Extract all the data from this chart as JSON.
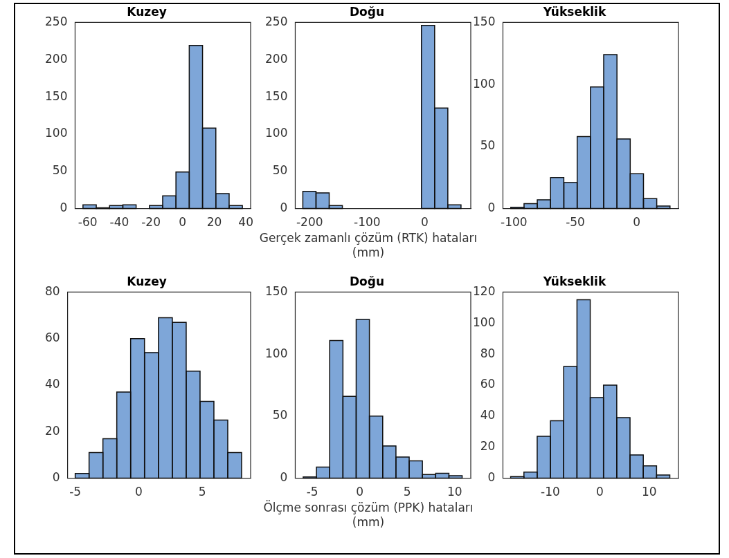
{
  "chart_data": [
    {
      "type": "histogram",
      "title": "Kuzey",
      "bins": [
        -63,
        -54.6,
        -46.2,
        -37.8,
        -29.4,
        -21,
        -12.6,
        -4.2,
        4.2,
        12.6,
        21,
        29.4,
        37.8
      ],
      "values": [
        5,
        1,
        4,
        5,
        0,
        4,
        17,
        49,
        219,
        108,
        20,
        4
      ],
      "color": "#7ea6d8",
      "xlim": [
        -68,
        43
      ],
      "xticks": [
        -60,
        -40,
        -20,
        0,
        20,
        40
      ],
      "ylim": [
        0,
        250
      ],
      "yticks": [
        0,
        50,
        100,
        150,
        200,
        250
      ]
    },
    {
      "type": "histogram",
      "title": "Doğu",
      "xlabel": "Gerçek zamanlı çözüm (RTK) hataları (mm)",
      "bins": [
        -211.8,
        -188.9,
        -166,
        -143.1,
        -120.2,
        -97.3,
        -74.4,
        -51.5,
        -28.6,
        -5.7,
        17.2,
        40.1,
        63
      ],
      "values": [
        23,
        21,
        4,
        0,
        0,
        0,
        0,
        0,
        0,
        246,
        135,
        5
      ],
      "color": "#7ea6d8",
      "xlim": [
        -225,
        80
      ],
      "xticks": [
        -200,
        -100,
        0
      ],
      "ylim": [
        0,
        250
      ],
      "yticks": [
        0,
        50,
        100,
        150,
        200,
        250
      ]
    },
    {
      "type": "histogram",
      "title": "Yükseklik",
      "bins": [
        -102.6,
        -91.8,
        -81,
        -70.2,
        -59.4,
        -48.5,
        -37.7,
        -26.9,
        -16.1,
        -5.3,
        5.5,
        16.3,
        27.1
      ],
      "values": [
        1,
        4,
        7,
        25,
        21,
        58,
        98,
        124,
        56,
        28,
        8,
        2
      ],
      "color": "#7ea6d8",
      "xlim": [
        -109,
        34
      ],
      "xticks": [
        -100,
        -50,
        0
      ],
      "ylim": [
        0,
        150
      ],
      "yticks": [
        0,
        50,
        100,
        150
      ]
    },
    {
      "type": "histogram",
      "title": "Kuzey",
      "bins": [
        -5,
        -3.91,
        -2.82,
        -1.73,
        -0.64,
        0.45,
        1.55,
        2.64,
        3.73,
        4.82,
        5.91,
        7,
        8.09
      ],
      "values": [
        2,
        11,
        17,
        37,
        60,
        54,
        69,
        67,
        46,
        33,
        25,
        11
      ],
      "color": "#7ea6d8",
      "xlim": [
        -5.6,
        8.8
      ],
      "xticks": [
        -5,
        0,
        5
      ],
      "ylim": [
        0,
        80
      ],
      "yticks": [
        0,
        20,
        40,
        60,
        80
      ]
    },
    {
      "type": "histogram",
      "title": "Doğu",
      "xlabel": "Ölçme sonrası çözüm (PPK) hataları (mm)",
      "bins": [
        -5.96,
        -4.56,
        -3.17,
        -1.77,
        -0.38,
        1.02,
        2.42,
        3.81,
        5.21,
        6.6,
        8,
        9.4,
        10.79
      ],
      "values": [
        1,
        9,
        111,
        66,
        128,
        50,
        26,
        17,
        14,
        3,
        4,
        2
      ],
      "color": "#7ea6d8",
      "xlim": [
        -6.8,
        11.7
      ],
      "xticks": [
        -5,
        0,
        5,
        10
      ],
      "ylim": [
        0,
        150
      ],
      "yticks": [
        0,
        50,
        100,
        150
      ]
    },
    {
      "type": "histogram",
      "title": "Yükseklik",
      "bins": [
        -18.04,
        -15.36,
        -12.67,
        -9.99,
        -7.31,
        -4.63,
        -1.94,
        0.74,
        3.42,
        6.1,
        8.79,
        11.47,
        14.16
      ],
      "values": [
        1,
        4,
        27,
        37,
        72,
        115,
        52,
        60,
        39,
        15,
        8,
        2
      ],
      "color": "#7ea6d8",
      "xlim": [
        -19.6,
        15.9
      ],
      "xticks": [
        -10,
        0,
        10
      ],
      "ylim": [
        0,
        120
      ],
      "yticks": [
        0,
        20,
        40,
        60,
        80,
        100,
        120
      ]
    }
  ]
}
